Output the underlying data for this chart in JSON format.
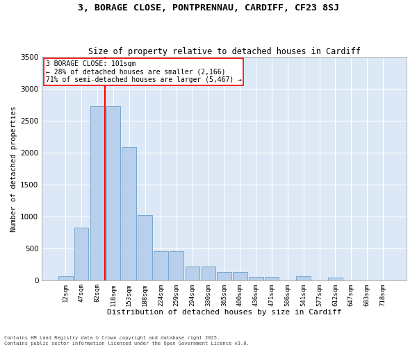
{
  "title_line1": "3, BORAGE CLOSE, PONTPRENNAU, CARDIFF, CF23 8SJ",
  "title_line2": "Size of property relative to detached houses in Cardiff",
  "xlabel": "Distribution of detached houses by size in Cardiff",
  "ylabel": "Number of detached properties",
  "categories": [
    "12sqm",
    "47sqm",
    "82sqm",
    "118sqm",
    "153sqm",
    "188sqm",
    "224sqm",
    "259sqm",
    "294sqm",
    "330sqm",
    "365sqm",
    "400sqm",
    "436sqm",
    "471sqm",
    "506sqm",
    "541sqm",
    "577sqm",
    "612sqm",
    "647sqm",
    "683sqm",
    "718sqm"
  ],
  "values": [
    60,
    820,
    2730,
    2730,
    2090,
    1020,
    450,
    450,
    220,
    220,
    130,
    130,
    50,
    50,
    0,
    65,
    0,
    40,
    0,
    0,
    0
  ],
  "bar_color": "#b8d0eb",
  "bar_edge_color": "#6a9fc8",
  "vline_color": "red",
  "annotation_text": "3 BORAGE CLOSE: 101sqm\n← 28% of detached houses are smaller (2,166)\n71% of semi-detached houses are larger (5,467) →",
  "annotation_box_color": "white",
  "annotation_box_edge": "red",
  "ylim": [
    0,
    3500
  ],
  "yticks": [
    0,
    500,
    1000,
    1500,
    2000,
    2500,
    3000,
    3500
  ],
  "background_color": "#dce8f5",
  "footer_line1": "Contains HM Land Registry data © Crown copyright and database right 2025.",
  "footer_line2": "Contains public sector information licensed under the Open Government Licence v3.0."
}
